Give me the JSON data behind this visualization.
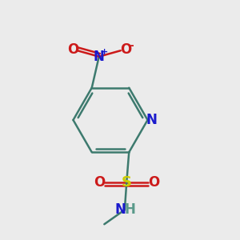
{
  "background_color": "#ebebeb",
  "bond_color": "#3d7a6e",
  "bond_width": 1.8,
  "dbo": 0.013,
  "atom_colors": {
    "N": "#1a1acc",
    "O": "#cc1a1a",
    "S": "#cccc00",
    "C": "#3d7a6e",
    "H": "#5a9a8a"
  },
  "fs": 12
}
